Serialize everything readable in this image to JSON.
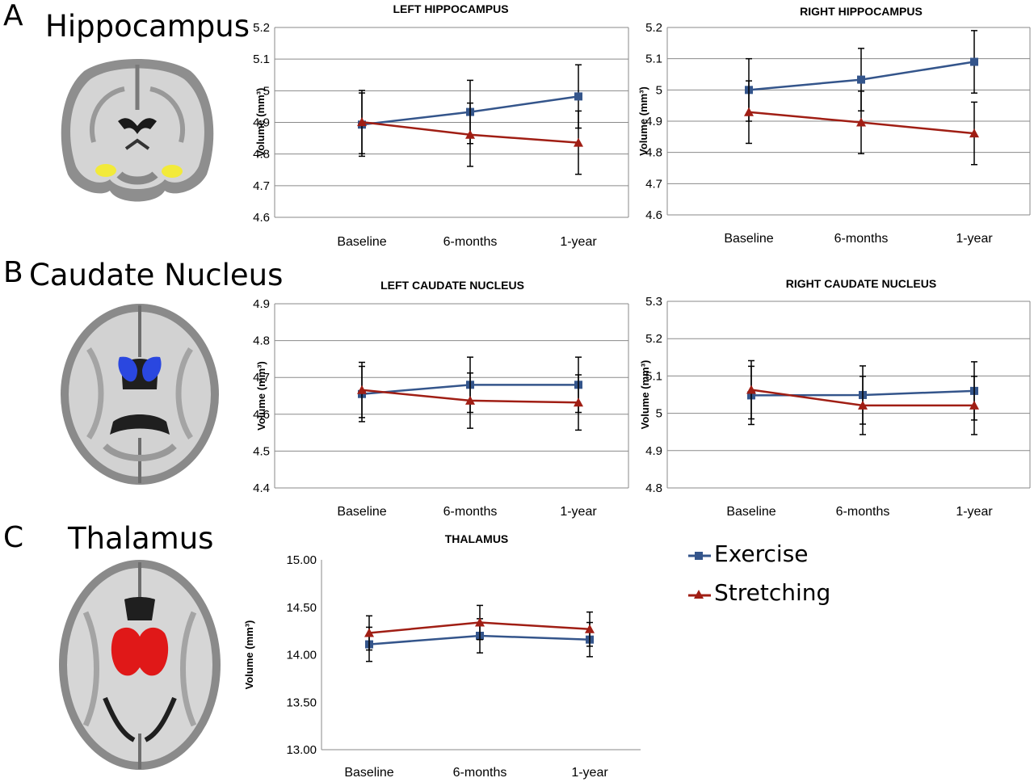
{
  "panels": {
    "A": {
      "letter": "A",
      "title": "Hippocampus"
    },
    "B": {
      "letter": "B",
      "title": "Caudate Nucleus"
    },
    "C": {
      "letter": "C",
      "title": "Thalamus"
    }
  },
  "legend": {
    "items": [
      {
        "name": "Exercise",
        "color": "#34558b",
        "marker": "square"
      },
      {
        "name": "Stretching",
        "color": "#a01e14",
        "marker": "triangle"
      }
    ]
  },
  "brain_highlight_colors": {
    "hippocampus": "#f2ea3a",
    "caudate": "#2a47e0",
    "thalamus": "#e01818"
  },
  "chart_data": [
    {
      "id": "left-hippocampus",
      "type": "line",
      "title": "LEFT HIPPOCAMPUS",
      "ylabel": "Volume (mm³)",
      "categories": [
        "Baseline",
        "6-months",
        "1-year"
      ],
      "ylim": [
        4.6,
        5.2
      ],
      "yticks": [
        "4.6",
        "4.7",
        "4.8",
        "4.9",
        "5",
        "5.1",
        "5.2"
      ],
      "grid": true,
      "series": [
        {
          "name": "Exercise",
          "values": [
            4.893,
            4.933,
            4.982
          ],
          "errors": [
            0.1,
            0.1,
            0.1
          ]
        },
        {
          "name": "Stretching",
          "values": [
            4.901,
            4.861,
            4.836
          ],
          "errors": [
            0.1,
            0.1,
            0.1
          ]
        }
      ]
    },
    {
      "id": "right-hippocampus",
      "type": "line",
      "title": "RIGHT HIPPOCAMPUS",
      "ylabel": "Volume (mm³)",
      "categories": [
        "Baseline",
        "6-months",
        "1-year"
      ],
      "ylim": [
        4.6,
        5.2
      ],
      "yticks": [
        "4.6",
        "4.7",
        "4.8",
        "4.9",
        "5",
        "5.1",
        "5.2"
      ],
      "grid": true,
      "series": [
        {
          "name": "Exercise",
          "values": [
            5.0,
            5.033,
            5.09
          ],
          "errors": [
            0.1,
            0.1,
            0.1
          ]
        },
        {
          "name": "Stretching",
          "values": [
            4.929,
            4.896,
            4.861
          ],
          "errors": [
            0.1,
            0.1,
            0.1
          ]
        }
      ]
    },
    {
      "id": "left-caudate",
      "type": "line",
      "title": "LEFT CAUDATE NUCLEUS",
      "ylabel": "Volume (mm³)",
      "categories": [
        "Baseline",
        "6-months",
        "1-year"
      ],
      "ylim": [
        4.4,
        4.9
      ],
      "yticks": [
        "4.4",
        "4.5",
        "4.6",
        "4.7",
        "4.8",
        "4.9"
      ],
      "grid": true,
      "series": [
        {
          "name": "Exercise",
          "values": [
            4.655,
            4.68,
            4.68
          ],
          "errors": [
            0.075,
            0.075,
            0.075
          ]
        },
        {
          "name": "Stretching",
          "values": [
            4.666,
            4.637,
            4.632
          ],
          "errors": [
            0.075,
            0.075,
            0.075
          ]
        }
      ]
    },
    {
      "id": "right-caudate",
      "type": "line",
      "title": "RIGHT CAUDATE NUCLEUS",
      "ylabel": "Volume (mm³)",
      "categories": [
        "Baseline",
        "6-months",
        "1-year"
      ],
      "ylim": [
        4.8,
        5.3
      ],
      "yticks": [
        "4.8",
        "4.9",
        "5",
        "5.1",
        "5.2",
        "5.3"
      ],
      "grid": true,
      "series": [
        {
          "name": "Exercise",
          "values": [
            5.048,
            5.049,
            5.06
          ],
          "errors": [
            0.078,
            0.078,
            0.078
          ]
        },
        {
          "name": "Stretching",
          "values": [
            5.063,
            5.021,
            5.021
          ],
          "errors": [
            0.078,
            0.078,
            0.078
          ]
        }
      ]
    },
    {
      "id": "thalamus",
      "type": "line",
      "title": "THALAMUS",
      "ylabel": "Volume (mm³)",
      "categories": [
        "Baseline",
        "6-months",
        "1-year"
      ],
      "ylim": [
        13.0,
        15.0
      ],
      "yticks": [
        "13.00",
        "13.50",
        "14.00",
        "14.50",
        "15.00"
      ],
      "grid": false,
      "series": [
        {
          "name": "Exercise",
          "values": [
            14.11,
            14.2,
            14.16
          ],
          "errors": [
            0.18,
            0.18,
            0.18
          ]
        },
        {
          "name": "Stretching",
          "values": [
            14.23,
            14.34,
            14.27
          ],
          "errors": [
            0.18,
            0.18,
            0.18
          ]
        }
      ]
    }
  ]
}
